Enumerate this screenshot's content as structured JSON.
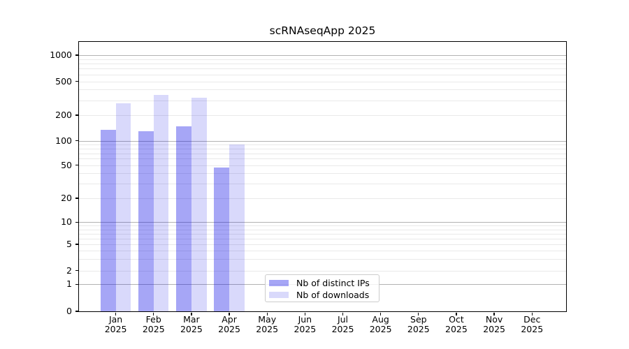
{
  "title": "scRNAseqApp 2025",
  "colors": {
    "bar_base": "#0000e6",
    "ips_rendered": "#a8a8f8",
    "downloads_rendered": "#d9d9f8",
    "grid_major": "#b2b2b2",
    "grid_minor": "#e9e9e9",
    "axis": "#000000",
    "legend_border": "#cccccc"
  },
  "chart_data": {
    "type": "bar",
    "title": "scRNAseqApp 2025",
    "yscale": "symlog",
    "grid": true,
    "legend_position": "lower center",
    "ylim": [
      0,
      1500
    ],
    "yticks": [
      0,
      1,
      2,
      5,
      10,
      20,
      50,
      100,
      200,
      500,
      1000
    ],
    "categories": [
      "Jan 2025",
      "Feb 2025",
      "Mar 2025",
      "Apr 2025",
      "May 2025",
      "Jun 2025",
      "Jul 2025",
      "Aug 2025",
      "Sep 2025",
      "Oct 2025",
      "Nov 2025",
      "Dec 2025"
    ],
    "series": [
      {
        "name": "Nb of distinct IPs",
        "color": "#0000e6",
        "alpha": 0.35,
        "values": [
          135,
          129,
          149,
          47,
          null,
          null,
          null,
          null,
          null,
          null,
          null,
          null
        ]
      },
      {
        "name": "Nb of downloads",
        "color": "#0000e6",
        "alpha": 0.15,
        "values": [
          278,
          345,
          320,
          90,
          null,
          null,
          null,
          null,
          null,
          null,
          null,
          null
        ]
      }
    ]
  }
}
